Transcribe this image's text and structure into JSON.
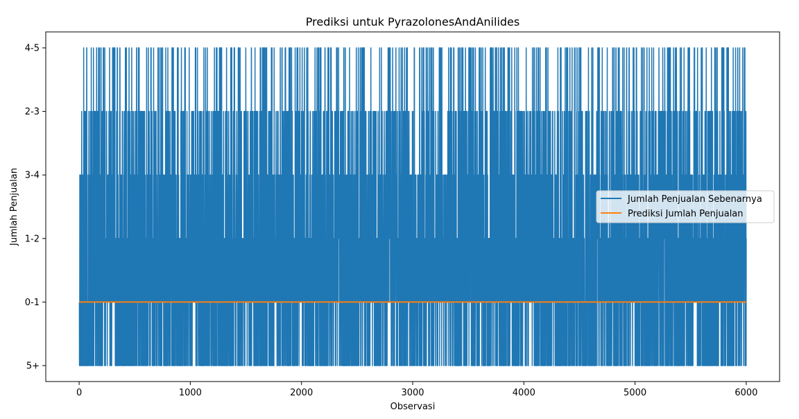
{
  "chart_data": {
    "type": "line",
    "title": "Prediksi untuk PyrazolonesAndAnilides",
    "xlabel": "Observasi",
    "ylabel": "Jumlah Penjualan",
    "xlim": [
      -300,
      6300
    ],
    "x_ticks": [
      0,
      1000,
      2000,
      3000,
      4000,
      5000,
      6000
    ],
    "categories": [
      "5+",
      "0-1",
      "1-2",
      "3-4",
      "2-3",
      "4-5"
    ],
    "grid": false,
    "legend_position": "center-right",
    "series": [
      {
        "name": "Jumlah Penjualan Sebenarnya",
        "color": "#1f77b4",
        "x_range": [
          0,
          6000
        ],
        "description_values": "dense oscillation across all categories from 5+ to 4-5, observed n≈6000"
      },
      {
        "name": "Prediksi Jumlah Penjualan",
        "color": "#ff7f0e",
        "x_range": [
          0,
          6000
        ],
        "constant_value": "0-1"
      }
    ]
  }
}
